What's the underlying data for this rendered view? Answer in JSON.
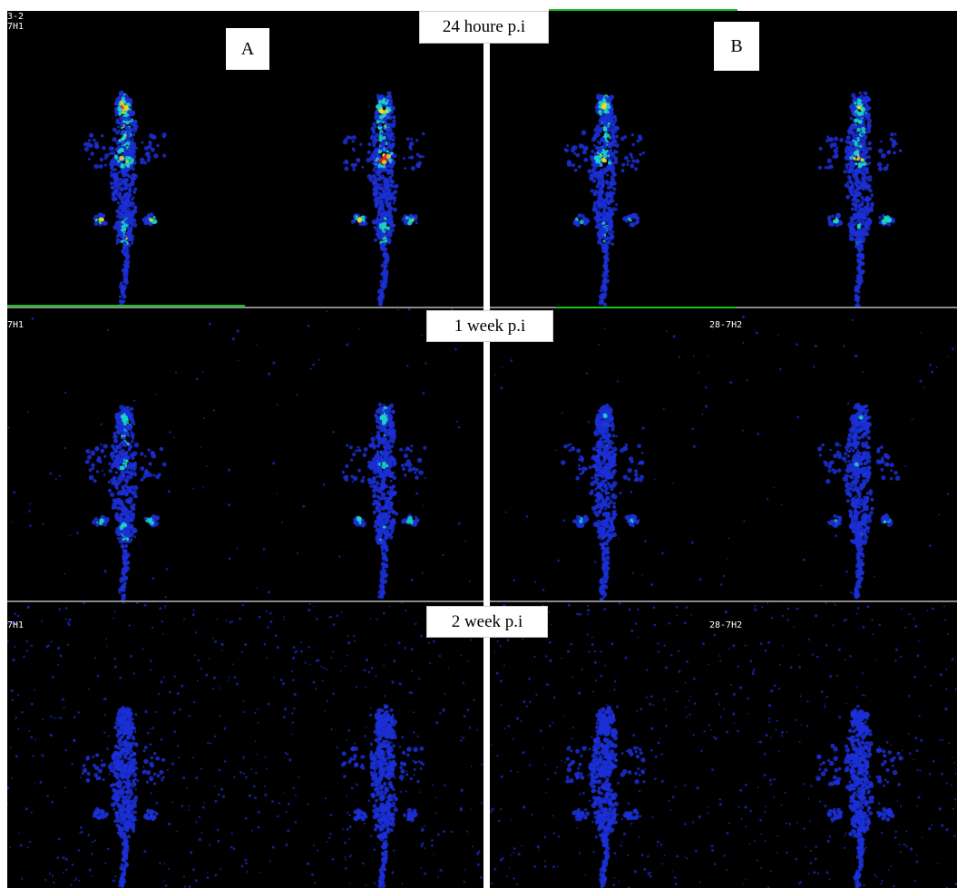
{
  "figure": {
    "time_labels": [
      "24 houre p.i",
      "1 week p.i",
      "2 week p.i"
    ],
    "group_labels": [
      "A",
      "B"
    ],
    "corner_labels": {
      "row1_left": "3-2\n7H1",
      "row2_left": "7H1",
      "row2_right": "28-7H2",
      "row3_left": "7H1",
      "row3_right": "28-7H2"
    }
  },
  "colors": {
    "background": "#000000",
    "low": "#1b2fd6",
    "mid": "#19d8c8",
    "high": "#f2e21a",
    "hot": "#e8241c",
    "separator": "#ffffff",
    "accent_green": "#16c11e"
  }
}
